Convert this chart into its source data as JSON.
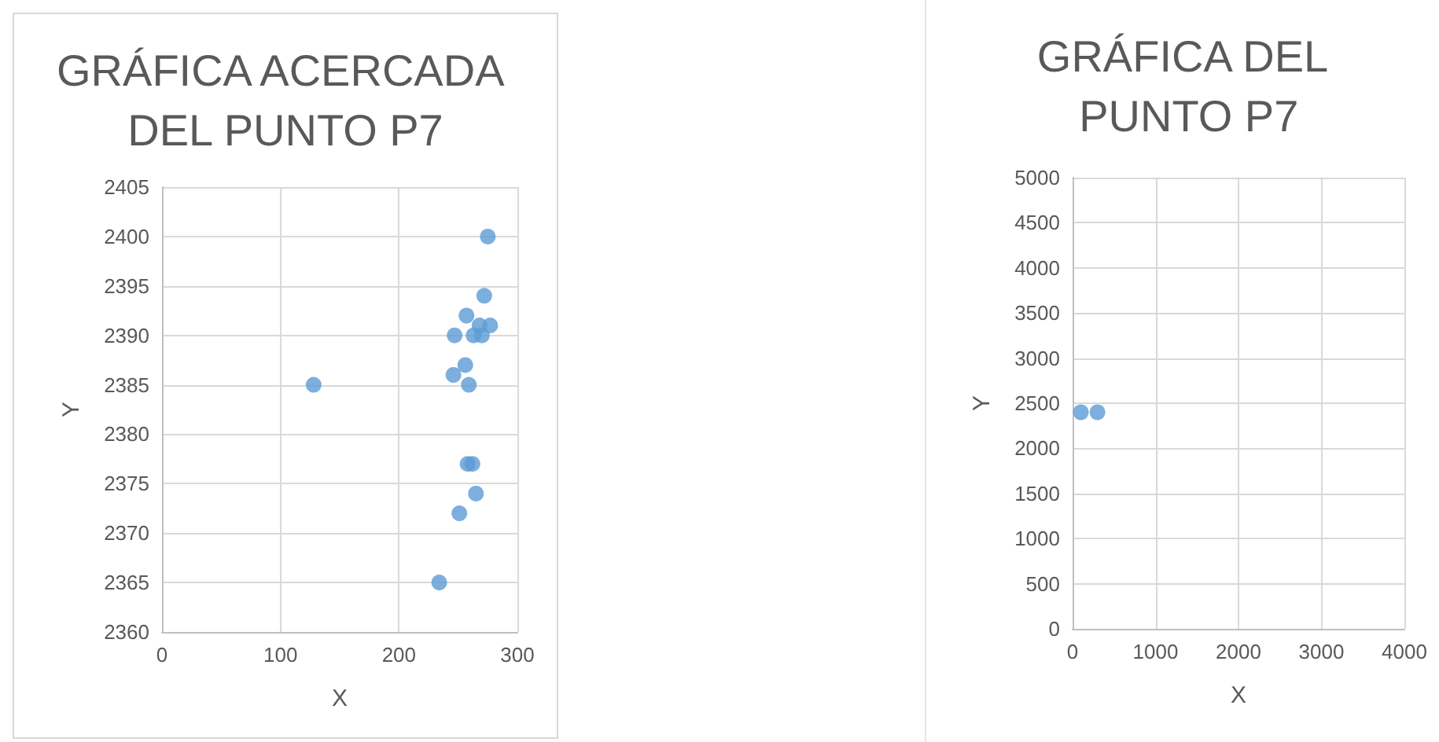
{
  "chart_data": [
    {
      "type": "scatter",
      "title": "GRÁFICA ACERCADA DEL PUNTO P7",
      "xlabel": "X",
      "ylabel": "Y",
      "marker": "circle",
      "grid": true,
      "series": [
        {
          "color": "#5b9bd5",
          "x": [
            275,
            272,
            257,
            277,
            268,
            247,
            263,
            270,
            256,
            246,
            259,
            128,
            258,
            262,
            265,
            251,
            234
          ],
          "values": [
            2400,
            2394,
            2392,
            2391,
            2391,
            2390,
            2390,
            2390,
            2387,
            2386,
            2385,
            2385,
            2377,
            2377,
            2374,
            2372,
            2365
          ]
        }
      ],
      "xlim": [
        0,
        300
      ],
      "xticks": [
        0,
        100,
        200,
        300
      ],
      "ylim": [
        2360,
        2405
      ],
      "yticks": [
        2360,
        2365,
        2370,
        2375,
        2380,
        2385,
        2390,
        2395,
        2400,
        2405
      ]
    },
    {
      "type": "scatter",
      "title": "GRÁFICA DEL PUNTO P7",
      "xlabel": "X",
      "ylabel": "Y",
      "marker": "circle",
      "grid": true,
      "series": [
        {
          "color": "#5b9bd5",
          "x": [
            100,
            300
          ],
          "values": [
            2400,
            2400
          ]
        }
      ],
      "xlim": [
        0,
        4000
      ],
      "xticks": [
        0,
        1000,
        2000,
        3000,
        4000
      ],
      "ylim": [
        0,
        5000
      ],
      "yticks": [
        0,
        500,
        1000,
        1500,
        2000,
        2500,
        3000,
        3500,
        4000,
        4500,
        5000
      ]
    }
  ]
}
